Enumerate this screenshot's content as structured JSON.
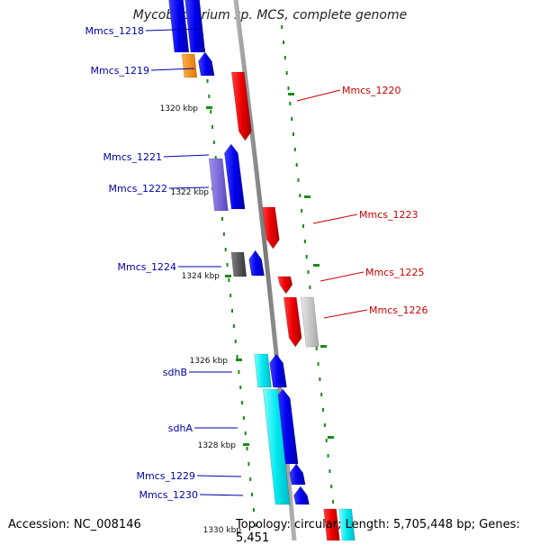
{
  "title": "Mycobacterium sp. MCS, complete genome",
  "footer": {
    "accession": "Accession: NC_008146",
    "summary": "Topology: circular; Length: 5,705,448 bp; Genes: 5,451"
  },
  "colors": {
    "forward_gene": "#0000ee",
    "reverse_gene": "#ee0000",
    "backbone": "#8a8a8a",
    "tick": "#1a8a1a",
    "label_forward": "#0000aa",
    "label_reverse": "#cc0000",
    "sdh_gene": "#00e0e8",
    "purple_gene": "#7b68d8",
    "orange_gene": "#f0901c",
    "grey_gene": "#555555",
    "light_grey_gene": "#c8c8c8"
  },
  "genes": [
    {
      "name": "Mmcs_1218",
      "strand": "forward"
    },
    {
      "name": "Mmcs_1219",
      "strand": "forward"
    },
    {
      "name": "Mmcs_1220",
      "strand": "reverse"
    },
    {
      "name": "Mmcs_1221",
      "strand": "forward"
    },
    {
      "name": "Mmcs_1222",
      "strand": "forward"
    },
    {
      "name": "Mmcs_1223",
      "strand": "reverse"
    },
    {
      "name": "Mmcs_1224",
      "strand": "forward"
    },
    {
      "name": "Mmcs_1225",
      "strand": "reverse"
    },
    {
      "name": "Mmcs_1226",
      "strand": "reverse"
    },
    {
      "name": "sdhB",
      "strand": "forward"
    },
    {
      "name": "sdhA",
      "strand": "forward"
    },
    {
      "name": "Mmcs_1229",
      "strand": "forward"
    },
    {
      "name": "Mmcs_1230",
      "strand": "forward"
    }
  ],
  "scale_labels": [
    "1320 kbp",
    "1322 kbp",
    "1324 kbp",
    "1326 kbp",
    "1328 kbp",
    "1330 kbp"
  ]
}
